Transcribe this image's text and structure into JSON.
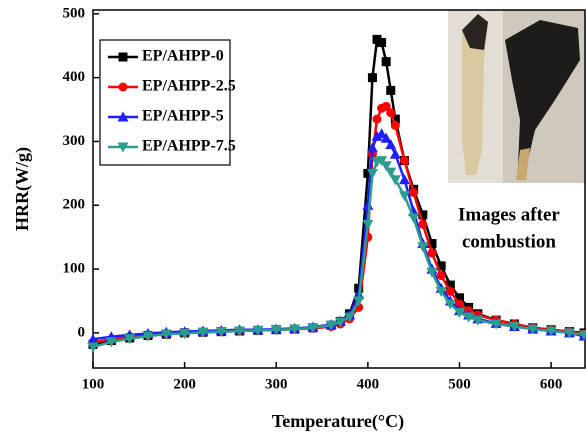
{
  "chart_data": {
    "type": "line",
    "x_label": "Temperature(°C)",
    "y_label": "HRR(W/g)",
    "annotations": [
      "Images after",
      "combustion"
    ],
    "x": [
      100,
      120,
      140,
      160,
      180,
      200,
      220,
      240,
      260,
      280,
      300,
      320,
      340,
      360,
      370,
      380,
      390,
      400,
      405,
      410,
      415,
      420,
      425,
      430,
      440,
      450,
      460,
      470,
      480,
      490,
      500,
      510,
      520,
      540,
      560,
      580,
      600,
      620,
      636
    ],
    "series": [
      {
        "name": "EP/AHPP-0",
        "color": "#000000",
        "marker": "square",
        "values": [
          -18,
          -12,
          -8,
          -4,
          -2,
          0,
          1,
          2,
          3,
          4,
          5,
          6,
          8,
          12,
          18,
          30,
          70,
          250,
          400,
          460,
          455,
          425,
          380,
          335,
          270,
          225,
          185,
          140,
          105,
          75,
          55,
          40,
          30,
          20,
          14,
          8,
          5,
          2,
          0
        ]
      },
      {
        "name": "EP/AHPP-2.5",
        "color": "#ff0000",
        "marker": "circle",
        "values": [
          -15,
          -10,
          -6,
          -3,
          -1,
          0,
          1,
          2,
          3,
          4,
          5,
          6,
          7,
          10,
          14,
          22,
          40,
          150,
          280,
          335,
          352,
          355,
          345,
          325,
          270,
          220,
          170,
          125,
          90,
          65,
          45,
          35,
          28,
          20,
          14,
          8,
          5,
          2,
          -2
        ]
      },
      {
        "name": "EP/AHPP-5",
        "color": "#1f1fff",
        "marker": "triangle",
        "values": [
          -10,
          -6,
          -3,
          -1,
          1,
          2,
          3,
          4,
          5,
          5,
          6,
          7,
          9,
          13,
          18,
          28,
          60,
          200,
          290,
          308,
          312,
          305,
          295,
          280,
          240,
          190,
          140,
          100,
          70,
          50,
          35,
          28,
          22,
          15,
          10,
          6,
          3,
          0,
          -5
        ]
      },
      {
        "name": "EP/AHPP-7.5",
        "color": "#2a9d8f",
        "marker": "triangle-down",
        "values": [
          -22,
          -14,
          -9,
          -5,
          -2,
          -1,
          1,
          2,
          3,
          4,
          5,
          6,
          8,
          12,
          17,
          25,
          50,
          170,
          250,
          268,
          270,
          262,
          252,
          240,
          215,
          180,
          135,
          95,
          65,
          45,
          32,
          25,
          20,
          14,
          10,
          6,
          3,
          0,
          -3
        ]
      }
    ],
    "xlim": [
      100,
      637
    ],
    "ylim": [
      -55,
      506
    ],
    "xticks": [
      100,
      200,
      300,
      400,
      500,
      600
    ],
    "yticks": [
      0,
      100,
      200,
      300,
      400,
      500
    ],
    "legend": "upper left"
  }
}
